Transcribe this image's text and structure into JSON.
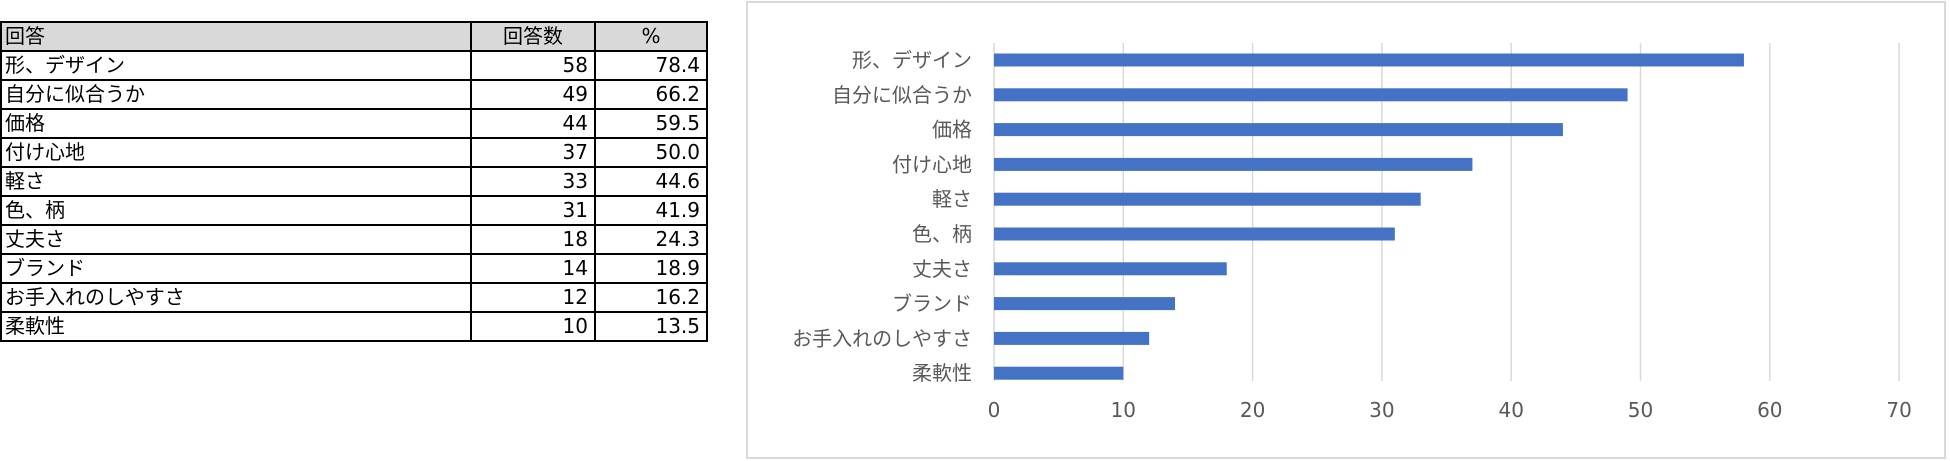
{
  "table": {
    "headers": {
      "label": "回答",
      "count": "回答数",
      "pct": "%"
    },
    "rows": [
      {
        "label": "形、デザイン",
        "count": "58",
        "pct": "78.4"
      },
      {
        "label": "自分に似合うか",
        "count": "49",
        "pct": "66.2"
      },
      {
        "label": "価格",
        "count": "44",
        "pct": "59.5"
      },
      {
        "label": "付け心地",
        "count": "37",
        "pct": "50.0"
      },
      {
        "label": "軽さ",
        "count": "33",
        "pct": "44.6"
      },
      {
        "label": "色、柄",
        "count": "31",
        "pct": "41.9"
      },
      {
        "label": "丈夫さ",
        "count": "18",
        "pct": "24.3"
      },
      {
        "label": "ブランド",
        "count": "14",
        "pct": "18.9"
      },
      {
        "label": "お手入れのしやすさ",
        "count": "12",
        "pct": "16.2"
      },
      {
        "label": "柔軟性",
        "count": "10",
        "pct": "13.5"
      }
    ]
  },
  "chart_data": {
    "type": "bar",
    "orientation": "horizontal",
    "categories": [
      "形、デザイン",
      "自分に似合うか",
      "価格",
      "付け心地",
      "軽さ",
      "色、柄",
      "丈夫さ",
      "ブランド",
      "お手入れのしやすさ",
      "柔軟性"
    ],
    "values": [
      58,
      49,
      44,
      37,
      33,
      31,
      18,
      14,
      12,
      10
    ],
    "xlim": [
      0,
      70
    ],
    "xticks": [
      0,
      10,
      20,
      30,
      40,
      50,
      60,
      70
    ],
    "grid": true,
    "legend": "none",
    "colors": {
      "bar": "#4472c4",
      "grid": "#d9d9d9",
      "text": "#595959"
    }
  }
}
